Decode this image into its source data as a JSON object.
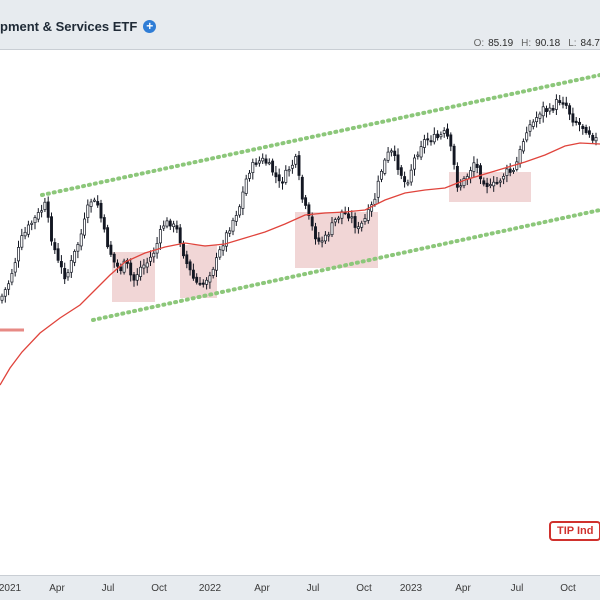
{
  "header": {
    "title": "pment & Services ETF",
    "ohlc": [
      {
        "key": "O:",
        "value": "85.19"
      },
      {
        "key": "H:",
        "value": "90.18"
      },
      {
        "key": "L:",
        "value": "84.7"
      }
    ]
  },
  "badge": "TIP Ind",
  "colors": {
    "up": "#131722",
    "down": "#131722",
    "ma": "#e0443c",
    "channel": "#8cc77a",
    "zone": "#efcfcf",
    "header_bg": "#e7ebef"
  },
  "chart_data": {
    "type": "candlestick",
    "x_tick_labels": [
      "2021",
      "Apr",
      "Jul",
      "Oct",
      "2022",
      "Apr",
      "Jul",
      "Oct",
      "2023",
      "Apr",
      "Jul",
      "Oct"
    ],
    "overlays": [
      "moving average",
      "rising channel",
      "support zones"
    ]
  }
}
